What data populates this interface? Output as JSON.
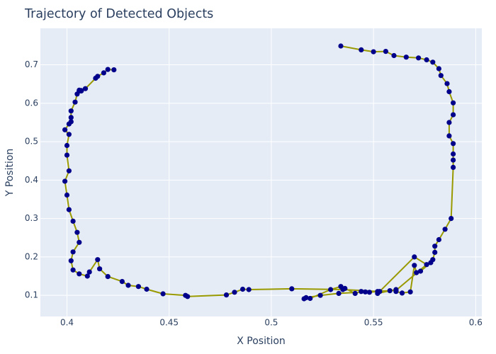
{
  "chart_data": {
    "type": "scatter",
    "mode": "lines+markers",
    "title": "Trajectory of Detected Objects",
    "xlabel": "X Position",
    "ylabel": "Y Position",
    "xlim": [
      0.387,
      0.603
    ],
    "ylim": [
      0.045,
      0.795
    ],
    "xticks": [
      0.4,
      0.45,
      0.5,
      0.55,
      0.6
    ],
    "xtick_labels": [
      "0.4",
      "0.45",
      "0.5",
      "0.55",
      "0.6"
    ],
    "yticks": [
      0.1,
      0.2,
      0.3,
      0.4,
      0.5,
      0.6,
      0.7
    ],
    "ytick_labels": [
      "0.1",
      "0.2",
      "0.3",
      "0.4",
      "0.5",
      "0.6",
      "0.7"
    ],
    "grid": true,
    "colors": {
      "plot_bg": "#e5ecf6",
      "grid": "#ffffff",
      "line": "#999900",
      "marker": "#00008b",
      "text": "#2a3f5f"
    },
    "series": [
      {
        "x": [
          0.534,
          0.544,
          0.55,
          0.556,
          0.56,
          0.566,
          0.572,
          0.576,
          0.579,
          0.582,
          0.583,
          0.586,
          0.587,
          0.589,
          0.589,
          0.587,
          0.587,
          0.589,
          0.589,
          0.589,
          0.589,
          0.588,
          0.585,
          0.582,
          0.58,
          0.58,
          0.579,
          0.578,
          0.573,
          0.571,
          0.57,
          0.568,
          0.564,
          0.561,
          0.561,
          0.558,
          0.552,
          0.552,
          0.548,
          0.544,
          0.541,
          0.536,
          0.534,
          0.529,
          0.519,
          0.516,
          0.517,
          0.524,
          0.533,
          0.546,
          0.561,
          0.576,
          0.57,
          0.553,
          0.535,
          0.51,
          0.489,
          0.486,
          0.482,
          0.478,
          0.459,
          0.458,
          0.447,
          0.439,
          0.435,
          0.43,
          0.427,
          0.42,
          0.416,
          0.415,
          0.411,
          0.41,
          0.406,
          0.403,
          0.402,
          0.403,
          0.406,
          0.405,
          0.403,
          0.401,
          0.4,
          0.399,
          0.401,
          0.4,
          0.4,
          0.401,
          0.399,
          0.401,
          0.402,
          0.402,
          0.402,
          0.404,
          0.405,
          0.406,
          0.407,
          0.406,
          0.407,
          0.409,
          0.414,
          0.415,
          0.418,
          0.42,
          0.423
        ],
        "y": [
          0.749,
          0.739,
          0.734,
          0.735,
          0.724,
          0.72,
          0.718,
          0.713,
          0.707,
          0.69,
          0.672,
          0.651,
          0.63,
          0.601,
          0.57,
          0.55,
          0.515,
          0.495,
          0.468,
          0.452,
          0.433,
          0.3,
          0.272,
          0.245,
          0.228,
          0.212,
          0.193,
          0.185,
          0.163,
          0.159,
          0.178,
          0.109,
          0.106,
          0.11,
          0.115,
          0.112,
          0.105,
          0.11,
          0.108,
          0.11,
          0.105,
          0.118,
          0.123,
          0.115,
          0.092,
          0.091,
          0.094,
          0.1,
          0.105,
          0.109,
          0.113,
          0.18,
          0.2,
          0.11,
          0.115,
          0.117,
          0.115,
          0.116,
          0.108,
          0.101,
          0.097,
          0.1,
          0.104,
          0.116,
          0.123,
          0.126,
          0.136,
          0.149,
          0.169,
          0.193,
          0.161,
          0.15,
          0.156,
          0.166,
          0.19,
          0.213,
          0.238,
          0.264,
          0.293,
          0.323,
          0.361,
          0.397,
          0.424,
          0.465,
          0.49,
          0.519,
          0.531,
          0.546,
          0.552,
          0.563,
          0.58,
          0.603,
          0.624,
          0.634,
          0.633,
          0.632,
          0.632,
          0.638,
          0.665,
          0.67,
          0.679,
          0.688,
          0.687
        ]
      }
    ]
  }
}
